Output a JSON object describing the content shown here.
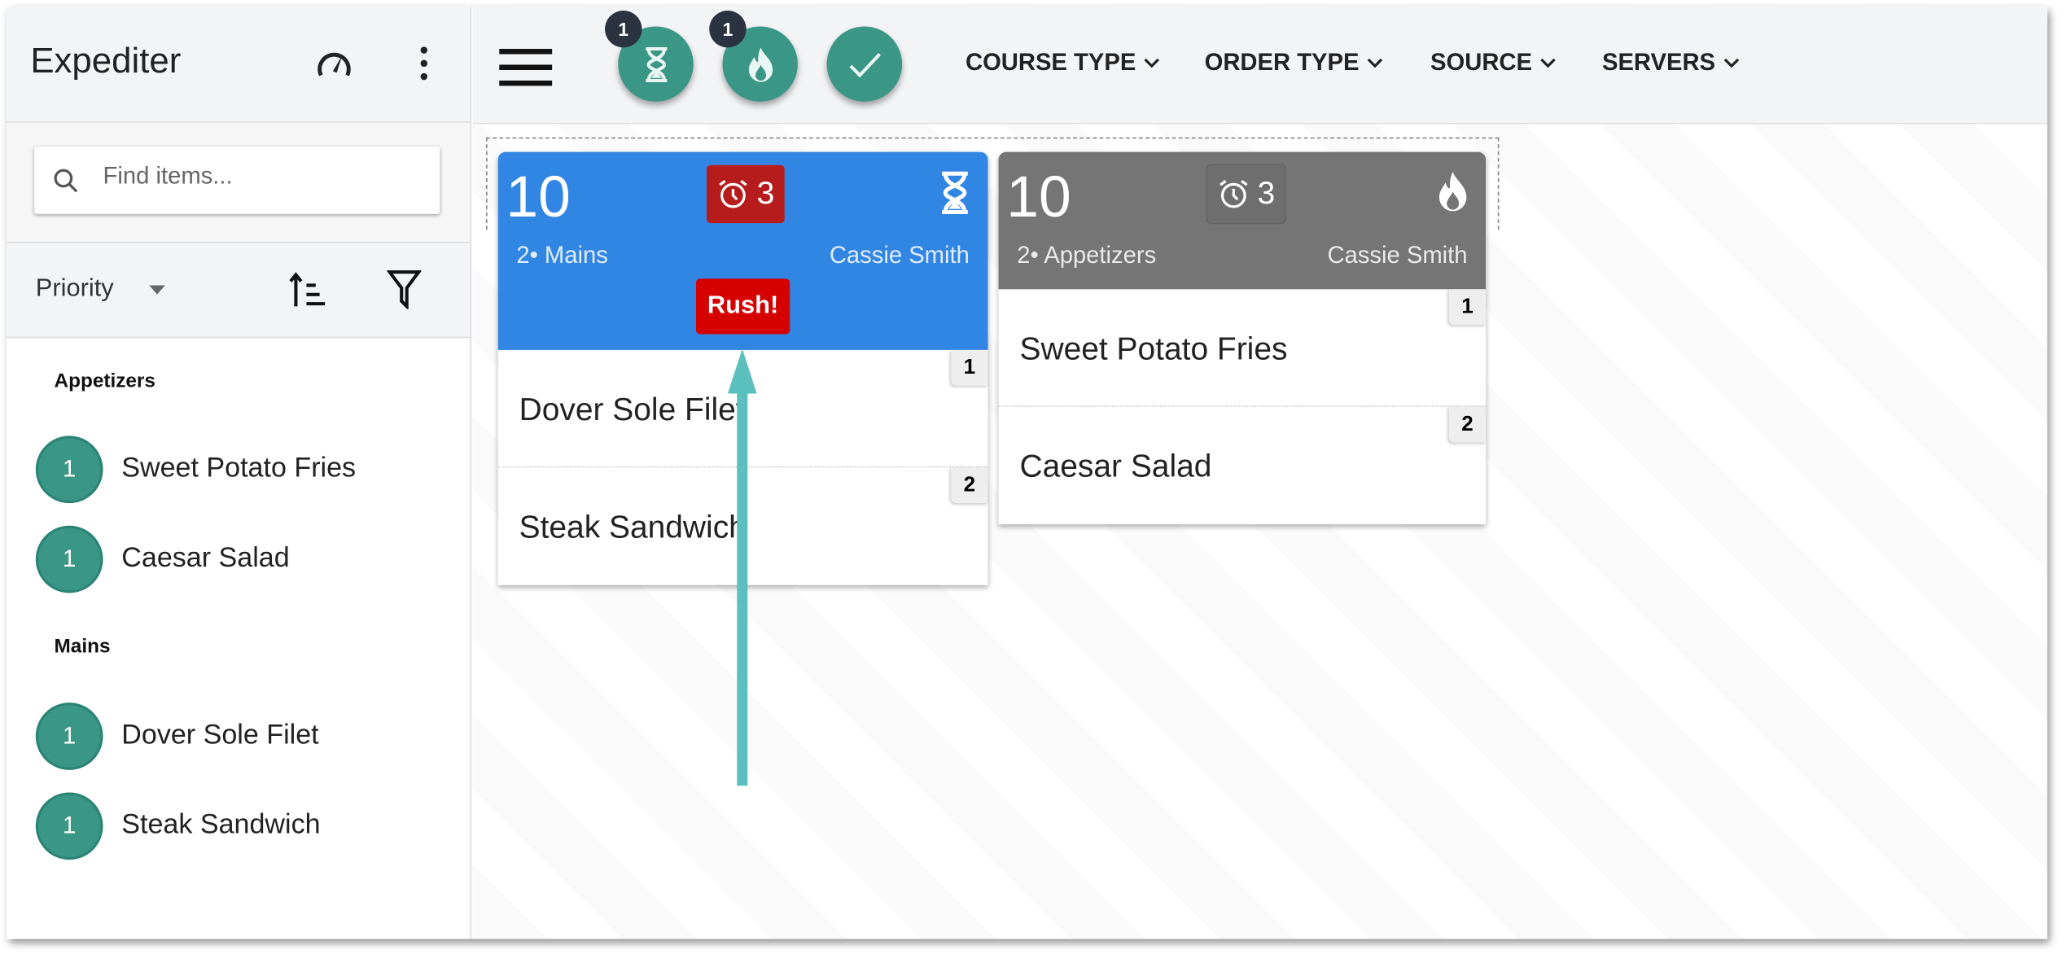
{
  "sidebar": {
    "title": "Expediter",
    "search_placeholder": "Find items...",
    "sort_label": "Priority",
    "groups": [
      {
        "name": "Appetizers",
        "items": [
          {
            "count": "1",
            "name": "Sweet Potato Fries"
          },
          {
            "count": "1",
            "name": "Caesar Salad"
          }
        ]
      },
      {
        "name": "Mains",
        "items": [
          {
            "count": "1",
            "name": "Dover Sole Filet"
          },
          {
            "count": "1",
            "name": "Steak Sandwich"
          }
        ]
      }
    ]
  },
  "header": {
    "status_buttons": [
      {
        "icon": "hourglass-icon",
        "badge": "1"
      },
      {
        "icon": "fire-icon",
        "badge": "1"
      },
      {
        "icon": "check-icon"
      }
    ],
    "filters": [
      "COURSE TYPE",
      "ORDER TYPE",
      "SOURCE",
      "SERVERS"
    ]
  },
  "tickets": [
    {
      "number": "10",
      "timer": "3",
      "course": "2• Mains",
      "server": "Cassie Smith",
      "status_icon": "hourglass-icon",
      "rush": "Rush!",
      "color": "#3186e4",
      "timer_color": "#b71c1c",
      "items": [
        {
          "seat": "1",
          "name": "Dover Sole Filet"
        },
        {
          "seat": "2",
          "name": "Steak Sandwich"
        }
      ]
    },
    {
      "number": "10",
      "timer": "3",
      "course": "2• Appetizers",
      "server": "Cassie Smith",
      "status_icon": "fire-icon",
      "color": "#757575",
      "items": [
        {
          "seat": "1",
          "name": "Sweet Potato Fries"
        },
        {
          "seat": "2",
          "name": "Caesar Salad"
        }
      ]
    }
  ],
  "colors": {
    "accent": "#3a9786",
    "annotation_arrow": "#5bbfbd"
  }
}
